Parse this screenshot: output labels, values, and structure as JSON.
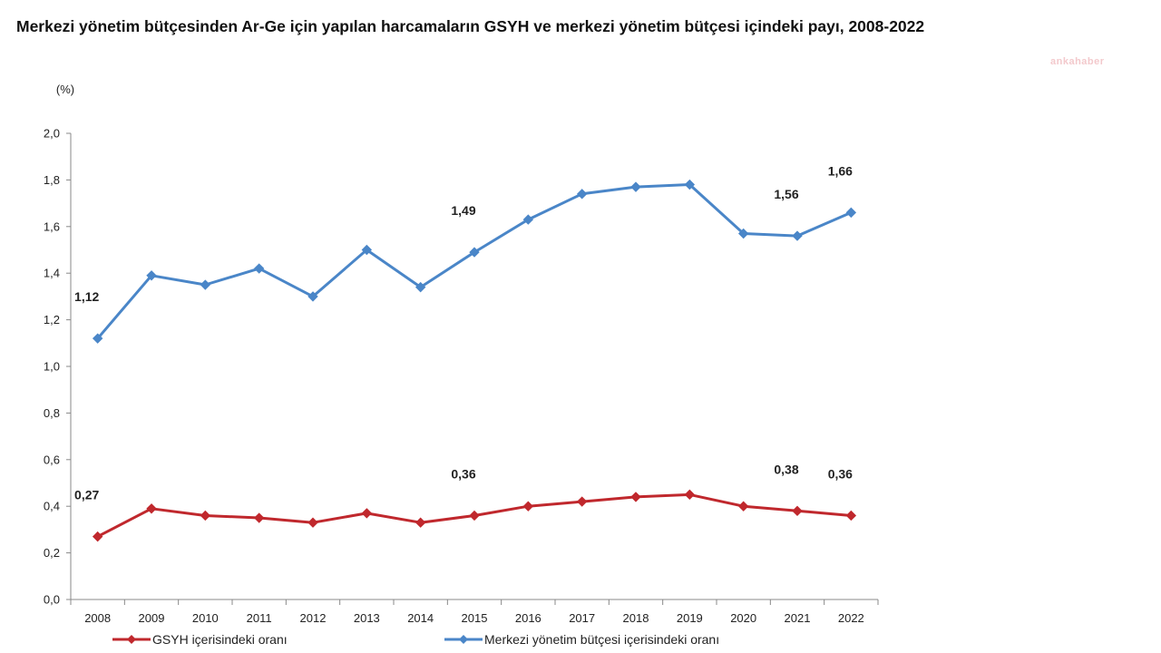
{
  "chart_data": {
    "type": "line",
    "title": "Merkezi yönetim bütçesinden Ar-Ge için yapılan harcamaların GSYH ve merkezi yönetim bütçesi içindeki payı, 2008-2022",
    "unit_label": "(%)",
    "x": [
      "2008",
      "2009",
      "2010",
      "2011",
      "2012",
      "2013",
      "2014",
      "2015",
      "2016",
      "2017",
      "2018",
      "2019",
      "2020",
      "2021",
      "2022"
    ],
    "ylim": [
      0,
      2.0
    ],
    "y_ticks": [
      "0,0",
      "0,2",
      "0,4",
      "0,6",
      "0,8",
      "1,0",
      "1,2",
      "1,4",
      "1,6",
      "1,8",
      "2,0"
    ],
    "grid": false,
    "legend_position": "bottom",
    "series": [
      {
        "name": "GSYH içerisindeki oranı",
        "color": "#c0282d",
        "values": [
          0.27,
          0.39,
          0.36,
          0.35,
          0.33,
          0.37,
          0.33,
          0.36,
          0.4,
          0.42,
          0.44,
          0.45,
          0.4,
          0.38,
          0.36
        ],
        "labels": [
          {
            "index": 0,
            "text": "0,27"
          },
          {
            "index": 7,
            "text": "0,36"
          },
          {
            "index": 13,
            "text": "0,38"
          },
          {
            "index": 14,
            "text": "0,36"
          }
        ]
      },
      {
        "name": "Merkezi yönetim bütçesi içerisindeki oranı",
        "color": "#4a86c8",
        "values": [
          1.12,
          1.39,
          1.35,
          1.42,
          1.3,
          1.5,
          1.34,
          1.49,
          1.63,
          1.74,
          1.77,
          1.78,
          1.57,
          1.56,
          1.66
        ],
        "labels": [
          {
            "index": 0,
            "text": "1,12"
          },
          {
            "index": 7,
            "text": "1,49"
          },
          {
            "index": 13,
            "text": "1,56"
          },
          {
            "index": 14,
            "text": "1,66"
          }
        ]
      }
    ]
  },
  "watermark": "ankahaber"
}
